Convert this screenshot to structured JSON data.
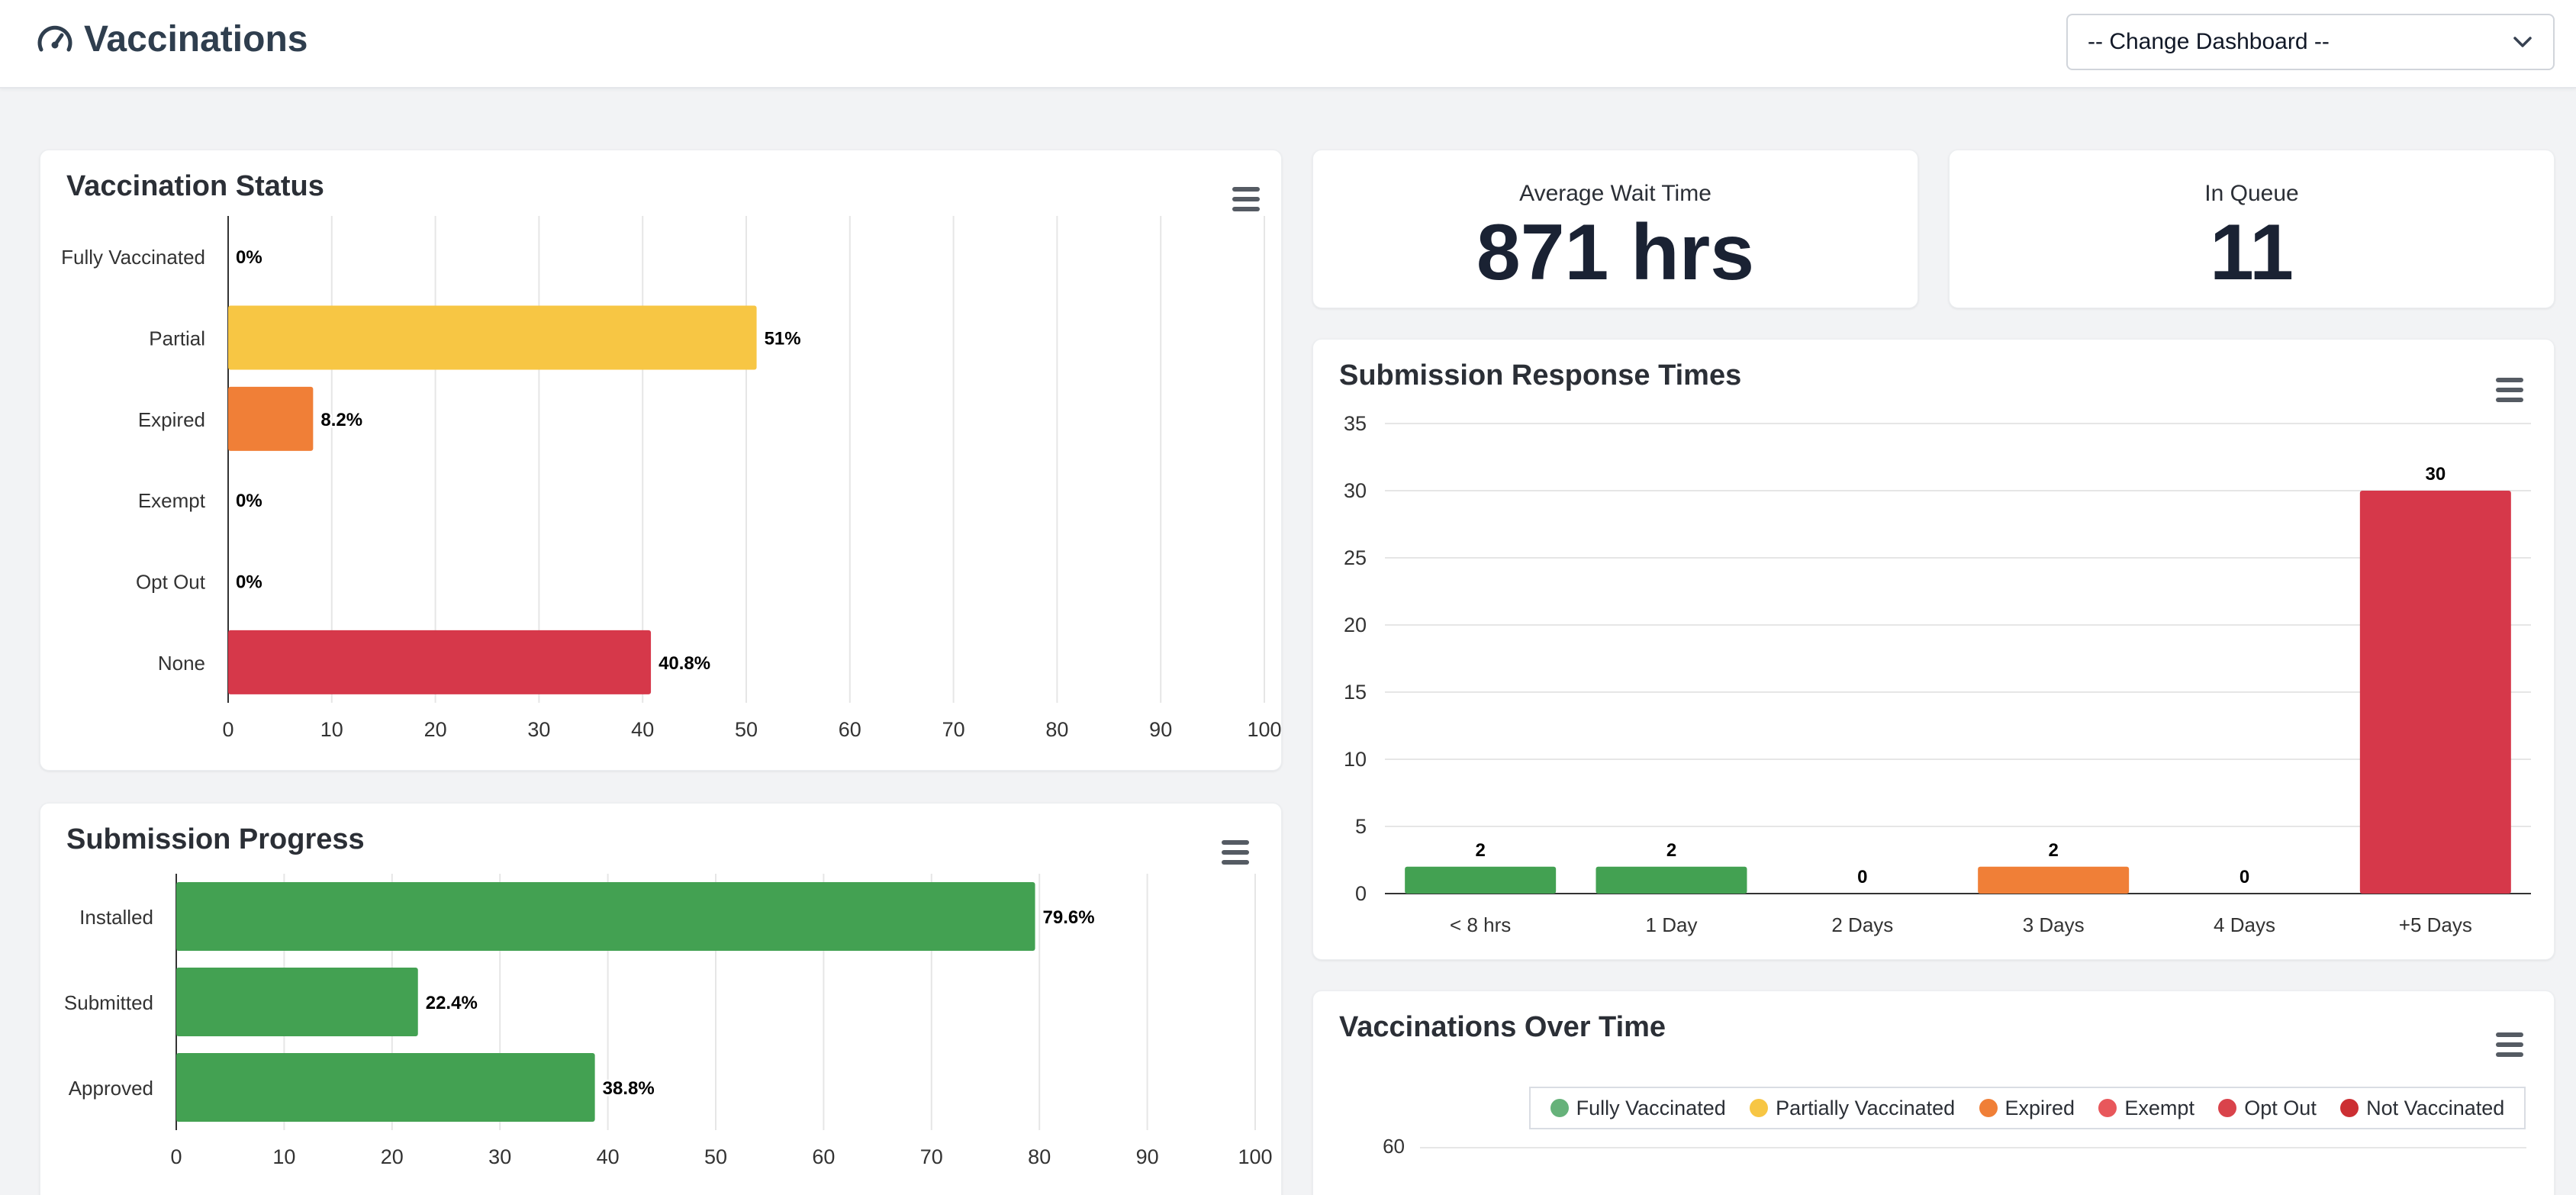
{
  "header": {
    "title": "Vaccinations",
    "dashboard_select": "-- Change Dashboard --"
  },
  "colors": {
    "green": "#43a152",
    "yellow": "#f7c644",
    "orange": "#f07f37",
    "red": "#d6384a",
    "grid": "#e6e6e6"
  },
  "vaccination_status": {
    "title": "Vaccination Status"
  },
  "wait_time": {
    "label": "Average Wait Time",
    "value": "871 hrs"
  },
  "queue": {
    "label": "In Queue",
    "value": "11"
  },
  "submission_progress": {
    "title": "Submission Progress"
  },
  "response_times": {
    "title": "Submission Response Times"
  },
  "over_time": {
    "title": "Vaccinations Over Time",
    "legend": [
      {
        "label": "Fully Vaccinated",
        "color": "#66b27a"
      },
      {
        "label": "Partially Vaccinated",
        "color": "#f7c644"
      },
      {
        "label": "Expired",
        "color": "#f07f37"
      },
      {
        "label": "Exempt",
        "color": "#e8575b"
      },
      {
        "label": "Opt Out",
        "color": "#d9434b"
      },
      {
        "label": "Not Vaccinated",
        "color": "#cc2f33"
      }
    ],
    "y_tick_visible": "60"
  },
  "chart_data": [
    {
      "type": "bar",
      "orientation": "horizontal",
      "title": "Vaccination Status",
      "categories": [
        "Fully Vaccinated",
        "Partial",
        "Expired",
        "Exempt",
        "Opt Out",
        "None"
      ],
      "values": [
        0,
        51,
        8.2,
        0,
        0,
        40.8
      ],
      "data_labels": [
        "0%",
        "51%",
        "8.2%",
        "0%",
        "0%",
        "40.8%"
      ],
      "colors": [
        "#43a152",
        "#f7c644",
        "#f07f37",
        "#43a152",
        "#43a152",
        "#d6384a"
      ],
      "xlim": [
        0,
        100
      ],
      "xticks": [
        0,
        10,
        20,
        30,
        40,
        50,
        60,
        70,
        80,
        90,
        100
      ],
      "grid": true
    },
    {
      "type": "bar",
      "orientation": "horizontal",
      "title": "Submission Progress",
      "categories": [
        "Installed",
        "Submitted",
        "Approved"
      ],
      "values": [
        79.6,
        22.4,
        38.8
      ],
      "data_labels": [
        "79.6%",
        "22.4%",
        "38.8%"
      ],
      "colors": [
        "#43a152",
        "#43a152",
        "#43a152"
      ],
      "xlim": [
        0,
        100
      ],
      "xticks": [
        0,
        10,
        20,
        30,
        40,
        50,
        60,
        70,
        80,
        90,
        100
      ],
      "grid": true
    },
    {
      "type": "bar",
      "orientation": "vertical",
      "title": "Submission Response Times",
      "categories": [
        "< 8 hrs",
        "1 Day",
        "2 Days",
        "3 Days",
        "4 Days",
        "+5 Days"
      ],
      "values": [
        2,
        2,
        0,
        2,
        0,
        30
      ],
      "data_labels": [
        "2",
        "2",
        "0",
        "2",
        "0",
        "30"
      ],
      "colors": [
        "#43a152",
        "#43a152",
        "#43a152",
        "#f07f37",
        "#43a152",
        "#d6384a"
      ],
      "ylim": [
        0,
        35
      ],
      "yticks": [
        0,
        5,
        10,
        15,
        20,
        25,
        30,
        35
      ],
      "grid": true
    }
  ]
}
